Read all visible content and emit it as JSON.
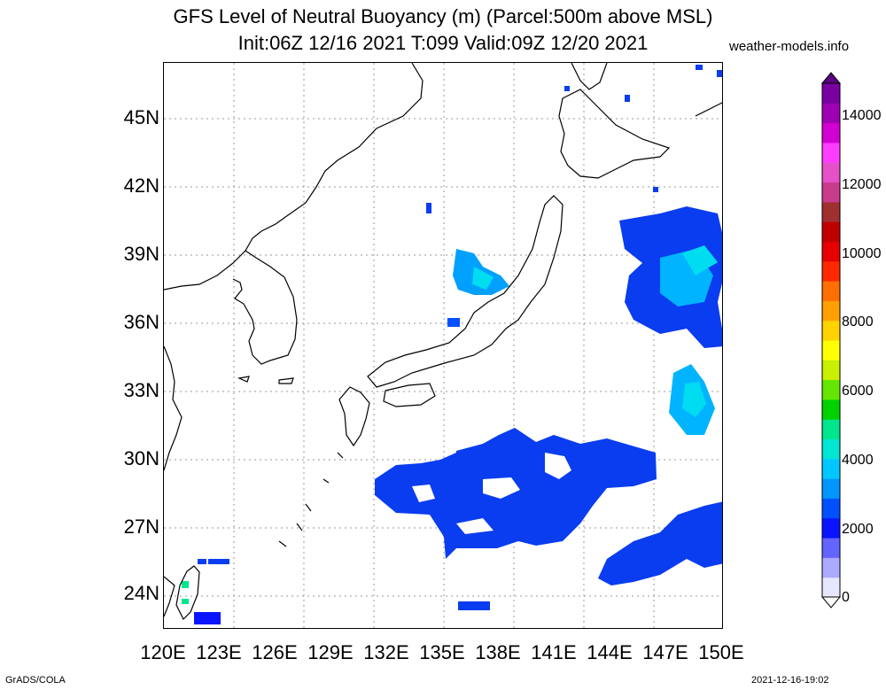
{
  "title": {
    "line1": "GFS Level of Neutral Buoyancy (m) (Parcel:500m above MSL)",
    "line2": "Init:06Z 12/16 2021 T:099 Valid:09Z 12/20 2021"
  },
  "site": "weather-models.info",
  "footer": {
    "left": "GrADS/COLA",
    "right": "2021-12-16-19:02"
  },
  "axes": {
    "lat_labels": [
      "45N",
      "42N",
      "39N",
      "36N",
      "33N",
      "30N",
      "27N",
      "24N"
    ],
    "lon_labels": [
      "120E",
      "123E",
      "126E",
      "129E",
      "132E",
      "135E",
      "138E",
      "141E",
      "144E",
      "147E",
      "150E"
    ]
  },
  "colorbar": {
    "labels": [
      "14000",
      "12000",
      "10000",
      "8000",
      "6000",
      "4000",
      "2000",
      "0"
    ],
    "colors": [
      "#e6e6ff",
      "#aaaaff",
      "#6464ff",
      "#0a14ff",
      "#0050ff",
      "#0096ff",
      "#00c8ff",
      "#00e6d2",
      "#00e68c",
      "#00d200",
      "#64e600",
      "#c8f000",
      "#ffff00",
      "#ffd200",
      "#ffa000",
      "#ff6e00",
      "#ff2800",
      "#e60000",
      "#c00000",
      "#a03030",
      "#c83c8c",
      "#e650c8",
      "#ff3cff",
      "#d200d2",
      "#a000b4",
      "#7800a0"
    ]
  }
}
